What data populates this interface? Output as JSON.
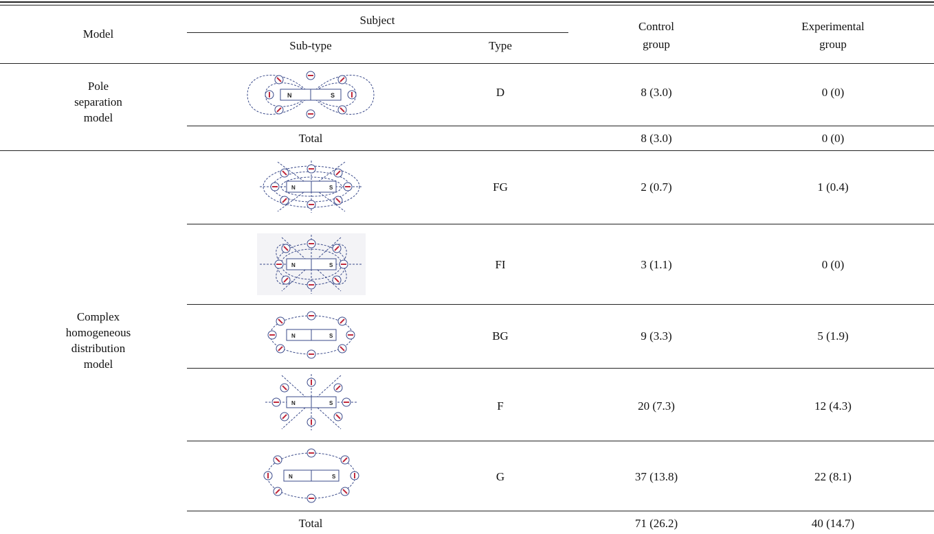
{
  "header": {
    "model": "Model",
    "subject": "Subject",
    "subtype": "Sub-type",
    "type": "Type",
    "control_line1": "Control",
    "control_line2": "group",
    "experimental_line1": "Experimental",
    "experimental_line2": "group"
  },
  "sections": [
    {
      "model": [
        "Pole",
        "separation",
        "model"
      ],
      "rows": [
        {
          "figure": "pole-separation-diagram",
          "type": "D",
          "control": "8  (3.0)",
          "experimental": "0  (0)"
        }
      ],
      "total_label": "Total",
      "total_control": "8  (3.0)",
      "total_experimental": "0  (0)"
    },
    {
      "model": [
        "Complex",
        "homogeneous",
        "distribution",
        "model"
      ],
      "rows": [
        {
          "figure": "fg-diagram",
          "type": "FG",
          "control": "2  (0.7)",
          "experimental": "1  (0.4)"
        },
        {
          "figure": "fi-diagram",
          "type": "FI",
          "control": "3  (1.1)",
          "experimental": "0  (0)"
        },
        {
          "figure": "bg-diagram",
          "type": "BG",
          "control": "9  (3.3)",
          "experimental": "5  (1.9)"
        },
        {
          "figure": "f-diagram",
          "type": "F",
          "control": "20  (7.3)",
          "experimental": "12  (4.3)"
        },
        {
          "figure": "g-diagram",
          "type": "G",
          "control": "37  (13.8)",
          "experimental": "22  (8.1)"
        }
      ],
      "total_label": "Total",
      "total_control": "71  (26.2)",
      "total_experimental": "40  (14.7)"
    }
  ],
  "magnet": {
    "north_label": "N",
    "south_label": "S"
  },
  "colors": {
    "line": "#3a4a8a",
    "needle": "#c0283a",
    "rule": "#222222"
  }
}
